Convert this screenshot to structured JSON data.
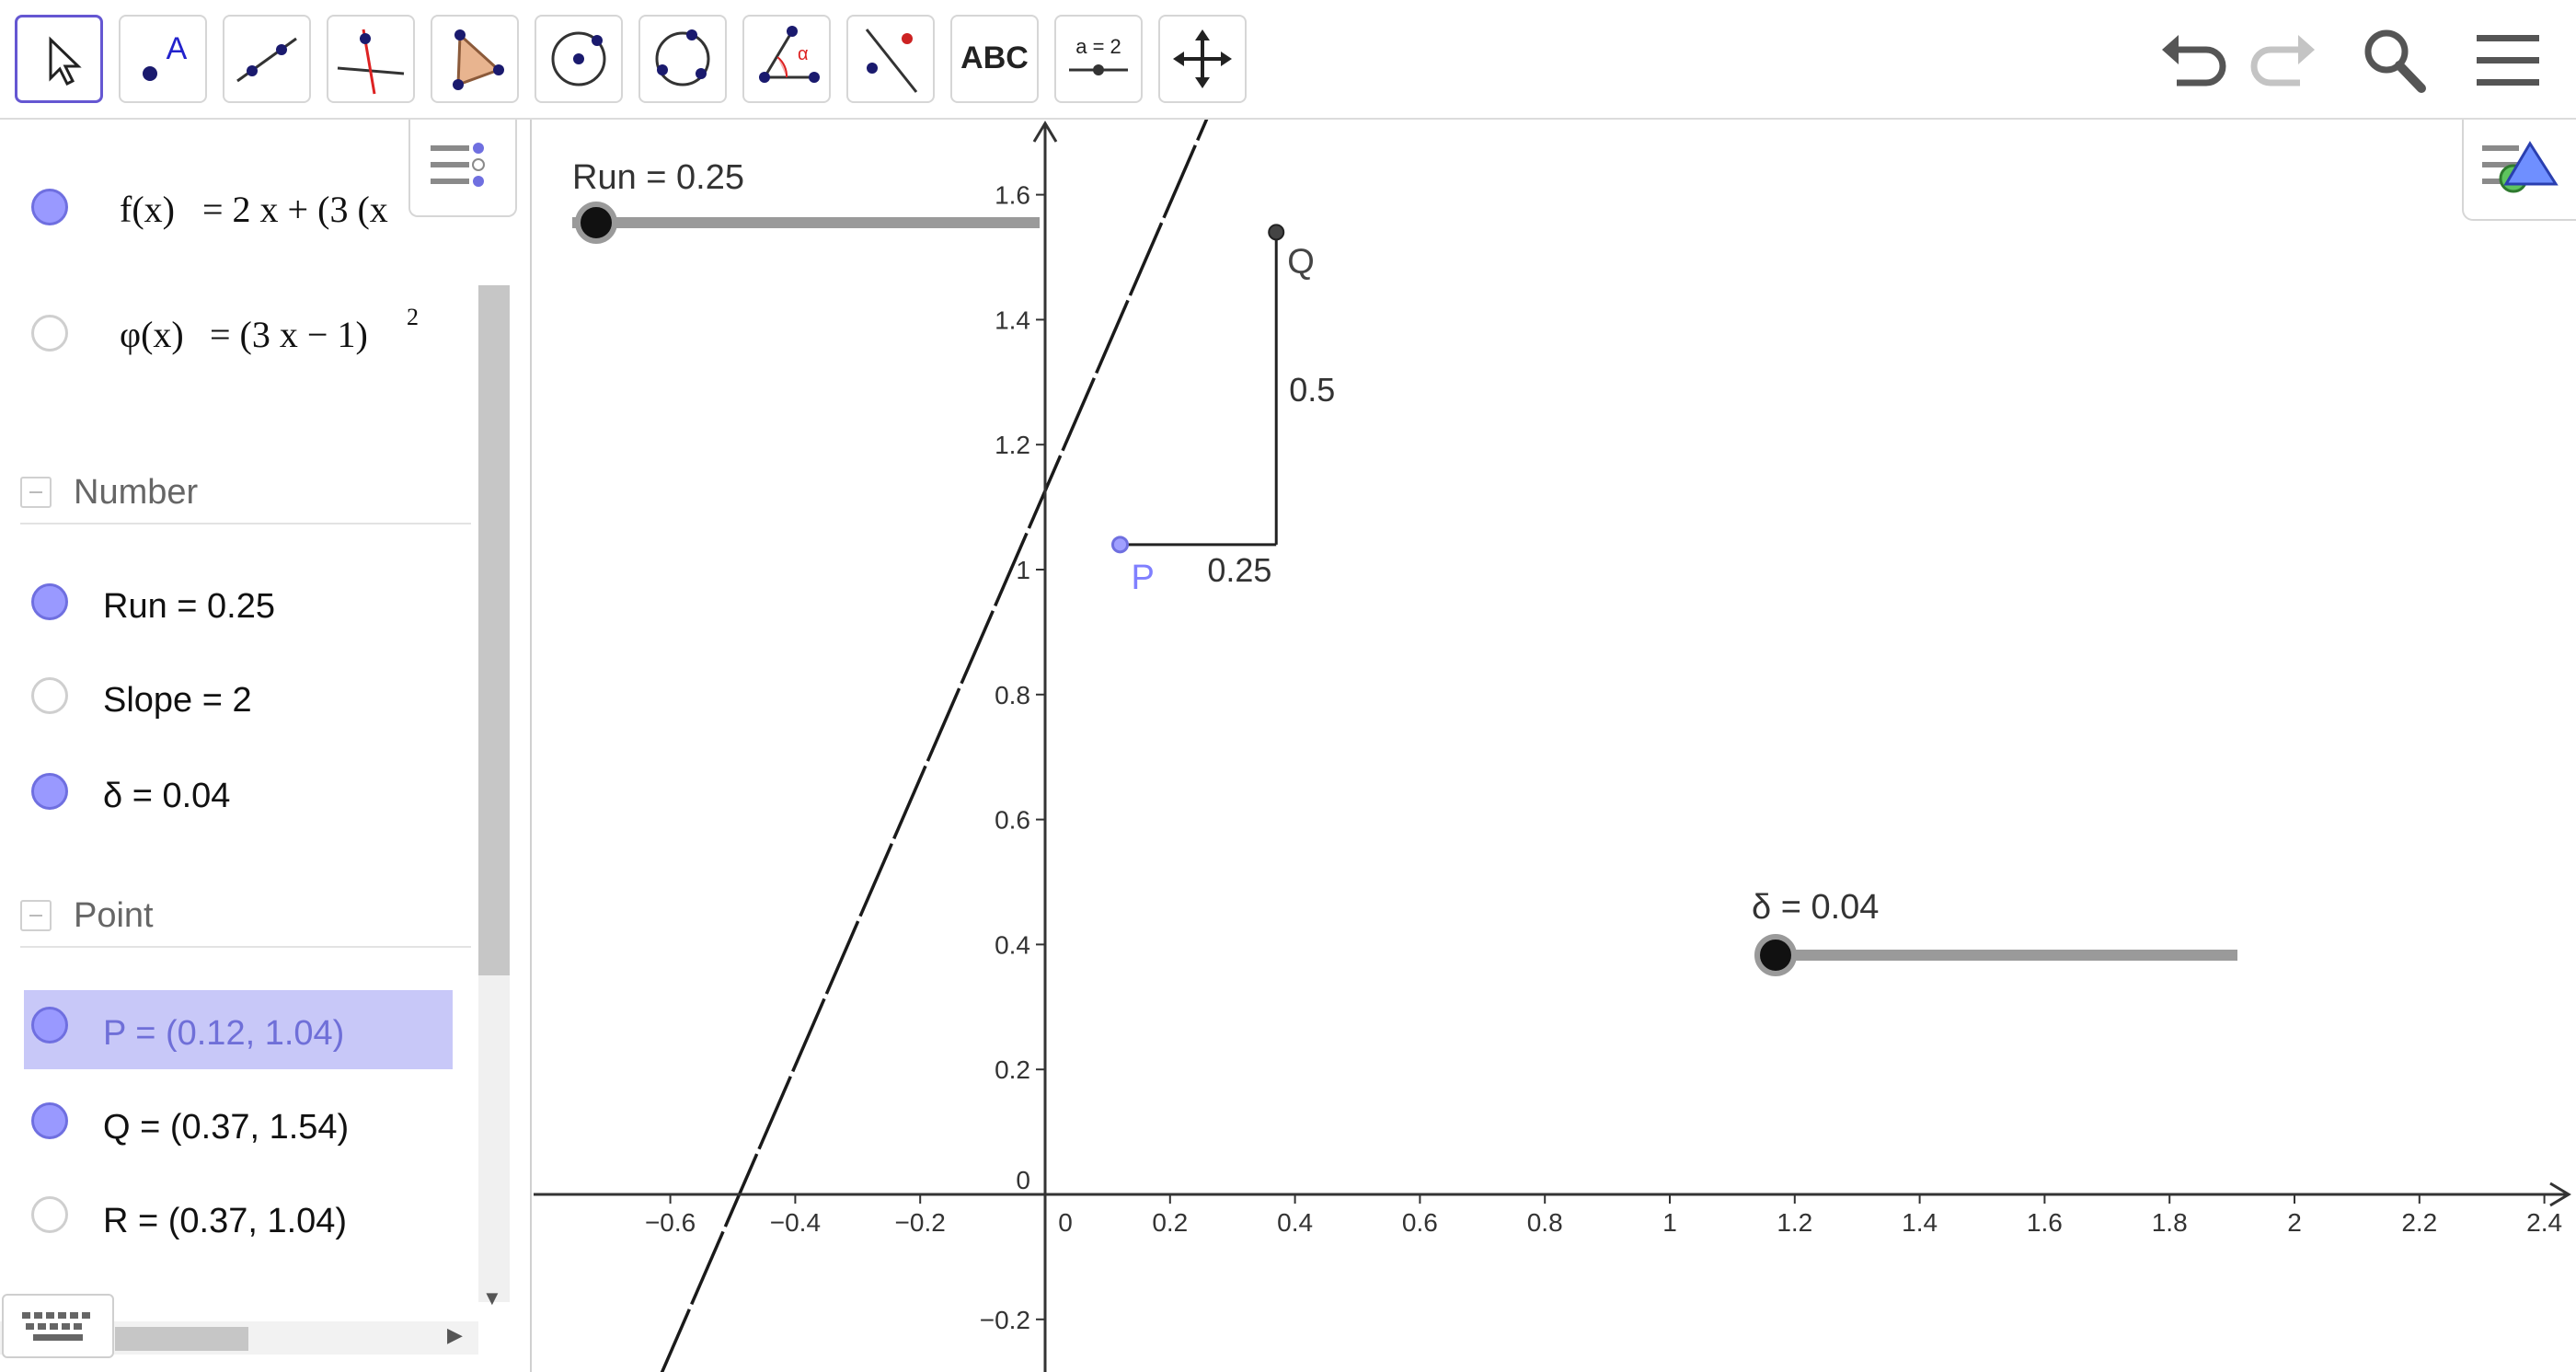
{
  "toolbar": {
    "tools": [
      {
        "name": "move-tool",
        "icon": "arrow-cursor-icon"
      },
      {
        "name": "point-tool",
        "icon": "point-with-label-icon",
        "label": "A"
      },
      {
        "name": "line-tool",
        "icon": "line-through-points-icon"
      },
      {
        "name": "perpendicular-line-tool",
        "icon": "perpendicular-line-icon"
      },
      {
        "name": "polygon-tool",
        "icon": "polygon-icon"
      },
      {
        "name": "circle-center-point-tool",
        "icon": "circle-center-icon"
      },
      {
        "name": "circle-three-points-tool",
        "icon": "circle-three-points-icon"
      },
      {
        "name": "angle-tool",
        "icon": "angle-icon",
        "label": "α"
      },
      {
        "name": "reflect-tool",
        "icon": "reflect-about-line-icon"
      },
      {
        "name": "text-tool",
        "icon": "text-icon",
        "label": "ABC"
      },
      {
        "name": "slider-tool",
        "icon": "slider-icon",
        "label": "a = 2"
      },
      {
        "name": "move-graphics-view-tool",
        "icon": "move-arrows-icon"
      }
    ],
    "controls": {
      "undo_icon": "undo-icon",
      "redo_icon": "redo-icon",
      "search_icon": "search-icon",
      "menu_icon": "hamburger-menu-icon"
    }
  },
  "algebra": {
    "functions": [
      {
        "name_part": "f(x)",
        "expr": "= 2 x + (3  (x",
        "visible": true
      },
      {
        "name_part": "φ(x)",
        "expr": "= (3 x − 1)",
        "sup": "2",
        "visible": false
      }
    ],
    "groups": [
      {
        "label": "Number",
        "items": [
          {
            "text": "Run = 0.25",
            "visible": true
          },
          {
            "text": "Slope = 2",
            "visible": false
          },
          {
            "text": "δ = 0.04",
            "visible": true
          }
        ]
      },
      {
        "label": "Point",
        "items": [
          {
            "text": "P = (0.12, 1.04)",
            "visible": true,
            "selected": true
          },
          {
            "text": "Q = (0.37, 1.54)",
            "visible": true
          },
          {
            "text": "R = (0.37, 1.04)",
            "visible": false
          }
        ]
      }
    ]
  },
  "graphics": {
    "x_ticks": [
      "−0.6",
      "−0.4",
      "−0.2",
      "0",
      "0.2",
      "0.4",
      "0.6",
      "0.8",
      "1",
      "1.2",
      "1.4",
      "1.6",
      "1.8",
      "2",
      "2.2",
      "2.4"
    ],
    "y_ticks": [
      "−0.2",
      "0",
      "0.2",
      "0.4",
      "0.6",
      "0.8",
      "1",
      "1.2",
      "1.4",
      "1.6"
    ],
    "points": {
      "P": {
        "label": "P",
        "x": 0.12,
        "y": 1.04
      },
      "Q": {
        "label": "Q",
        "x": 0.37,
        "y": 1.54
      }
    },
    "run_label": "0.25",
    "rise_label": "0.5",
    "sliders": {
      "run": {
        "label": "Run = 0.25",
        "value": 0.25
      },
      "delta": {
        "label": "δ = 0.04",
        "value": 0.04
      }
    },
    "colors": {
      "point_P": "#7f7fff",
      "axis": "#333333",
      "hatch": "#1a1a1a"
    }
  }
}
